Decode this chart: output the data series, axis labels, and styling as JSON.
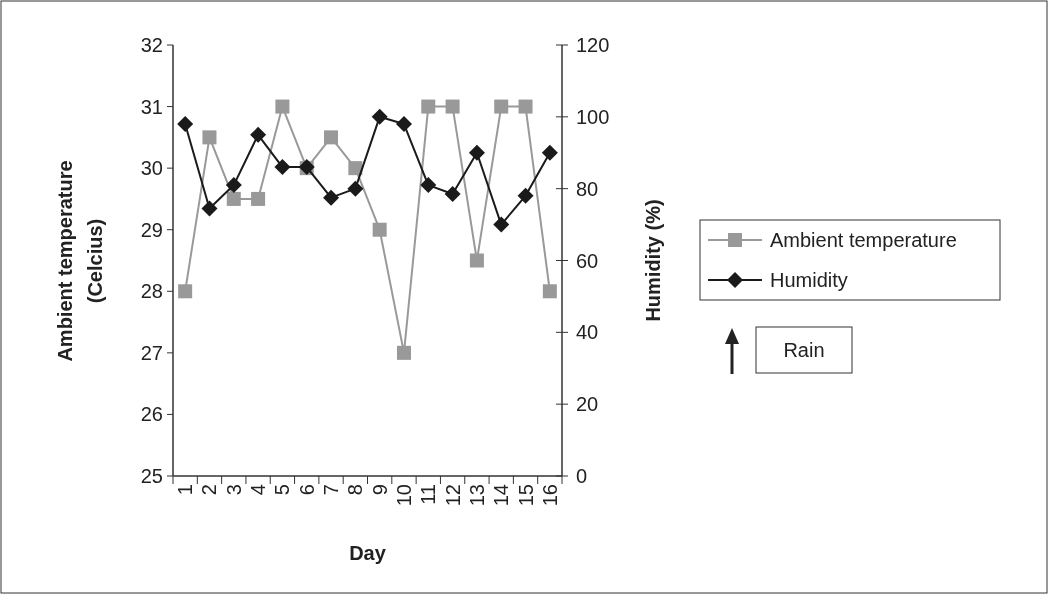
{
  "chart_data": {
    "type": "line",
    "xlabel": "Day",
    "ylabel": "Ambient temperature (Celcius)",
    "y2label": "Humidity (%)",
    "categories": [
      "1",
      "2",
      "3",
      "4",
      "5",
      "6",
      "7",
      "8",
      "9",
      "10",
      "11",
      "12",
      "13",
      "14",
      "15",
      "16"
    ],
    "series": [
      {
        "name": "Ambient temperature",
        "color": "#999999",
        "marker": "square",
        "values": [
          28,
          30.5,
          29.5,
          29.5,
          31,
          30,
          30.5,
          30,
          29,
          27,
          31,
          31,
          28.5,
          31,
          31,
          28
        ]
      },
      {
        "name": "Humidity",
        "color": "#1a1a1a",
        "marker": "diamond",
        "axis": "y2",
        "values": [
          98,
          74.5,
          81,
          95,
          86,
          86,
          77.5,
          80,
          100,
          98,
          81,
          78.5,
          90,
          70,
          78,
          90
        ]
      }
    ],
    "ylim": [
      25,
      32
    ],
    "yticks": [
      25,
      26,
      27,
      28,
      29,
      30,
      31,
      32
    ],
    "y2lim": [
      0,
      120
    ],
    "y2ticks": [
      0,
      20,
      40,
      60,
      80,
      100,
      120
    ],
    "legend": "right",
    "grid": false,
    "line_style": "solid",
    "annotations": [
      "Rain"
    ]
  }
}
